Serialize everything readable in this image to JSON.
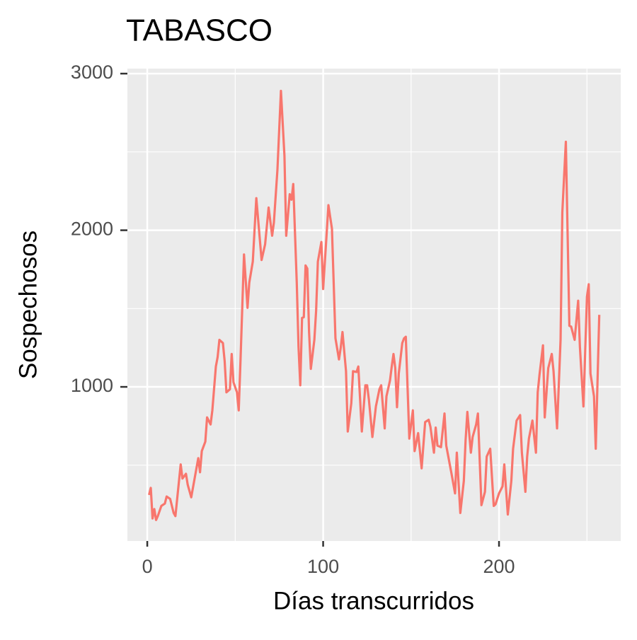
{
  "chart_data": {
    "type": "line",
    "title": "TABASCO",
    "xlabel": "Días transcurridos",
    "ylabel": "Sospechosos",
    "x": [
      1,
      2,
      3,
      4,
      5,
      6,
      8,
      10,
      11,
      13,
      15,
      16,
      17,
      19,
      20,
      22,
      23,
      25,
      27,
      29,
      30,
      31,
      33,
      34,
      36,
      37,
      39,
      40,
      41,
      43,
      44,
      45,
      47,
      48,
      49,
      51,
      52,
      53,
      55,
      57,
      58,
      60,
      62,
      65,
      67,
      69,
      71,
      72,
      74,
      76,
      78,
      79,
      81,
      82,
      83,
      85,
      86,
      87,
      88,
      89,
      90,
      91,
      92,
      93,
      95,
      96,
      97,
      99,
      100,
      102,
      103,
      105,
      107,
      109,
      110,
      111,
      113,
      114,
      116,
      117,
      119,
      120,
      122,
      124,
      125,
      126,
      128,
      130,
      132,
      133,
      135,
      136,
      138,
      139,
      140,
      141,
      142,
      143,
      145,
      146,
      147,
      149,
      151,
      152,
      154,
      156,
      158,
      160,
      161,
      163,
      164,
      165,
      167,
      169,
      170,
      173,
      175,
      176,
      178,
      180,
      181,
      182,
      184,
      185,
      187,
      188,
      190,
      192,
      193,
      195,
      197,
      198,
      200,
      202,
      203,
      205,
      207,
      208,
      210,
      212,
      213,
      215,
      216,
      217,
      219,
      221,
      222,
      223,
      225,
      226,
      228,
      230,
      231,
      233,
      235,
      236,
      238,
      240,
      241,
      243,
      245,
      246,
      248,
      250,
      251,
      252,
      254,
      255,
      257
    ],
    "series": [
      {
        "name": "Sospechosos",
        "color": "#F8766D",
        "values": [
          310,
          355,
          160,
          220,
          150,
          175,
          240,
          255,
          300,
          285,
          195,
          175,
          285,
          505,
          415,
          445,
          375,
          295,
          420,
          545,
          455,
          590,
          650,
          805,
          760,
          850,
          1130,
          1190,
          1300,
          1280,
          1165,
          965,
          985,
          1210,
          1030,
          965,
          850,
          1165,
          1845,
          1505,
          1665,
          1800,
          2205,
          1810,
          1910,
          2145,
          1965,
          2050,
          2385,
          2890,
          2475,
          1965,
          2230,
          2195,
          2295,
          1665,
          1255,
          1010,
          1440,
          1445,
          1775,
          1755,
          1350,
          1115,
          1300,
          1485,
          1800,
          1925,
          1625,
          1980,
          2160,
          2010,
          1310,
          1175,
          1250,
          1350,
          1100,
          715,
          895,
          1100,
          1095,
          1130,
          715,
          1010,
          1010,
          920,
          680,
          875,
          985,
          1010,
          735,
          940,
          1040,
          1130,
          1210,
          1120,
          870,
          1085,
          1280,
          1310,
          1320,
          670,
          850,
          590,
          705,
          480,
          775,
          790,
          745,
          580,
          740,
          625,
          615,
          830,
          625,
          445,
          320,
          580,
          195,
          400,
          660,
          840,
          580,
          680,
          760,
          830,
          245,
          330,
          555,
          605,
          240,
          250,
          320,
          365,
          505,
          185,
          400,
          605,
          785,
          820,
          580,
          330,
          555,
          670,
          785,
          580,
          965,
          1075,
          1265,
          805,
          1120,
          1210,
          1100,
          735,
          1300,
          2115,
          2565,
          1390,
          1385,
          1300,
          1550,
          1255,
          875,
          1575,
          1655,
          1085,
          940,
          605,
          1460
        ]
      }
    ],
    "xlim": [
      -11.3,
      269.2
    ],
    "ylim": [
      16,
      3032
    ],
    "xticks": [
      0,
      100,
      200
    ],
    "yticks": [
      1000,
      2000,
      3000
    ],
    "xminor": [
      50,
      150,
      250
    ],
    "yminor": [
      500,
      1500,
      2500
    ],
    "grid": true
  }
}
